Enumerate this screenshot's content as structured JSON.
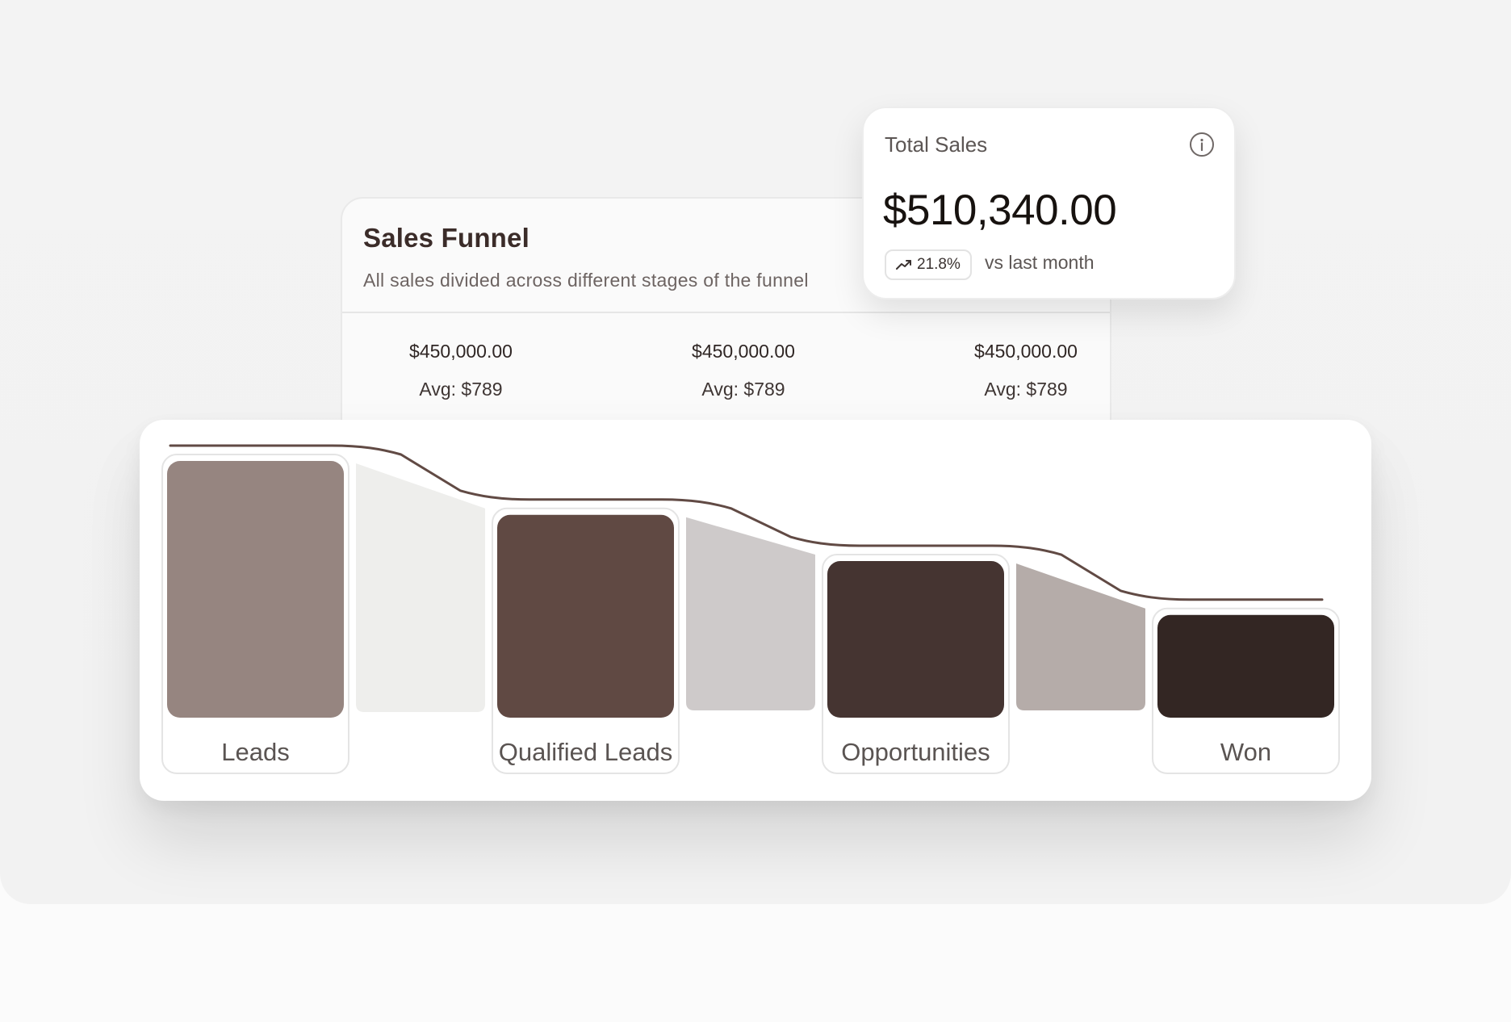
{
  "funnel": {
    "title": "Sales Funnel",
    "subtitle": "All sales divided across different stages of the funnel",
    "stats": [
      {
        "total": "$450,000.00",
        "avg": "Avg: $789"
      },
      {
        "total": "$450,000.00",
        "avg": "Avg: $789"
      },
      {
        "total": "$450,000.00",
        "avg": "Avg: $789"
      }
    ]
  },
  "total_sales": {
    "label": "Total Sales",
    "value": "$510,340.00",
    "change": "21.8%",
    "change_label": "vs last month",
    "info_icon": "info-icon",
    "trend_icon": "trend-up-icon"
  },
  "chart_data": {
    "type": "bar",
    "categories": [
      "Leads",
      "Qualified Leads",
      "Opportunities",
      "Won"
    ],
    "values": [
      100,
      79,
      61,
      40
    ],
    "ylim": [
      0,
      100
    ],
    "grid": false,
    "colors": [
      "#968580",
      "#604943",
      "#453431",
      "#332623"
    ],
    "connector_colors": [
      "#eeeeec",
      "#cecaca",
      "#b5aca9"
    ],
    "line_color": "#614a44"
  }
}
